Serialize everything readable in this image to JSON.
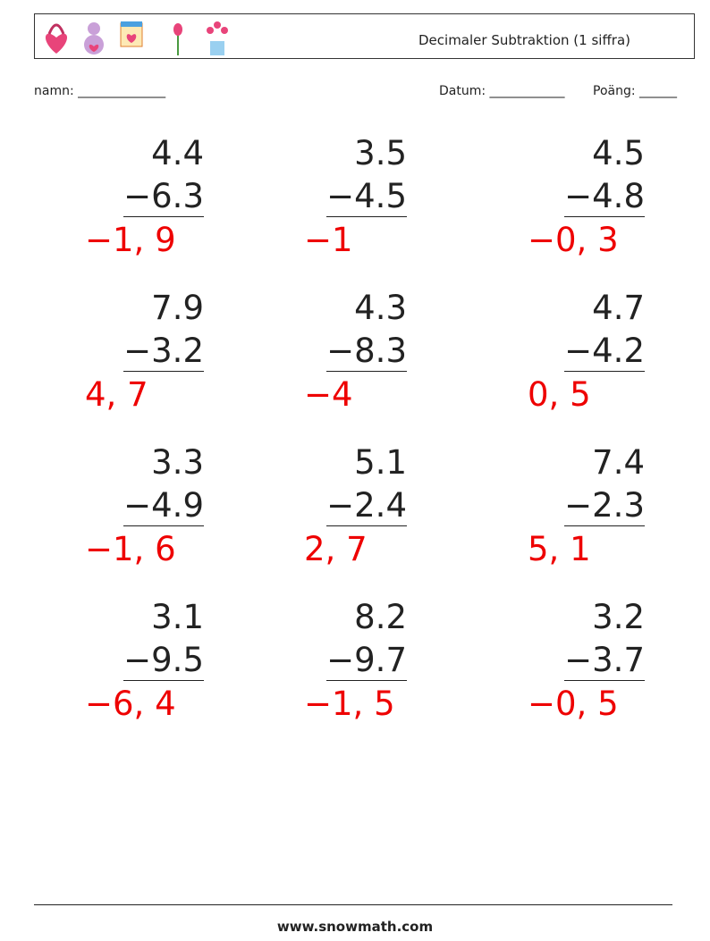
{
  "header": {
    "title": "Decimaler Subtraktion (1 siffra)"
  },
  "fields": {
    "name": "namn: ______________",
    "date": "Datum: ____________",
    "score": "Poäng: ______"
  },
  "problems": [
    {
      "top": "4.4",
      "bottom": "−6.3",
      "answer": "−1, 9"
    },
    {
      "top": "3.5",
      "bottom": "−4.5",
      "answer": "−1"
    },
    {
      "top": "4.5",
      "bottom": "−4.8",
      "answer": "−0, 3"
    },
    {
      "top": "7.9",
      "bottom": "−3.2",
      "answer": "4, 7"
    },
    {
      "top": "4.3",
      "bottom": "−8.3",
      "answer": "−4"
    },
    {
      "top": "4.7",
      "bottom": "−4.2",
      "answer": "0, 5"
    },
    {
      "top": "3.3",
      "bottom": "−4.9",
      "answer": "−1, 6"
    },
    {
      "top": "5.1",
      "bottom": "−2.4",
      "answer": "2, 7"
    },
    {
      "top": "7.4",
      "bottom": "−2.3",
      "answer": "5, 1"
    },
    {
      "top": "3.1",
      "bottom": "−9.5",
      "answer": "−6, 4"
    },
    {
      "top": "8.2",
      "bottom": "−9.7",
      "answer": "−1, 5"
    },
    {
      "top": "3.2",
      "bottom": "−3.7",
      "answer": "−0, 5"
    }
  ],
  "footer": "www.snowmath.com"
}
